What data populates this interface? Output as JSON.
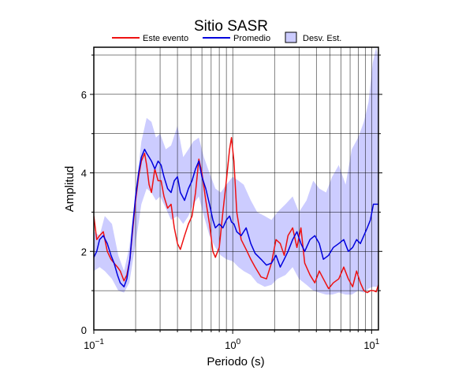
{
  "chart_data": {
    "type": "line",
    "title": "Sitio SASR",
    "xlabel": "Periodo (s)",
    "ylabel": "Amplitud",
    "x_scale": "log",
    "xlim": [
      0.1,
      11.2
    ],
    "ylim": [
      0,
      7.2
    ],
    "grid": true,
    "legend_position": "top",
    "x_ticks": [
      {
        "value": 0.1,
        "base": "10",
        "exp": "−1"
      },
      {
        "value": 1,
        "base": "10",
        "exp": "0"
      },
      {
        "value": 10,
        "base": "10",
        "exp": "1"
      }
    ],
    "y_ticks": [
      0,
      2,
      4,
      6
    ],
    "series": [
      {
        "name": "Este evento",
        "color": "#ee1111",
        "x": [
          0.1,
          0.105,
          0.11,
          0.117,
          0.125,
          0.133,
          0.14,
          0.148,
          0.155,
          0.165,
          0.173,
          0.182,
          0.19,
          0.2,
          0.21,
          0.22,
          0.232,
          0.24,
          0.25,
          0.26,
          0.275,
          0.29,
          0.305,
          0.32,
          0.34,
          0.36,
          0.38,
          0.4,
          0.42,
          0.45,
          0.48,
          0.51,
          0.54,
          0.57,
          0.6,
          0.64,
          0.68,
          0.72,
          0.75,
          0.8,
          0.85,
          0.9,
          0.95,
          0.98,
          1.02,
          1.07,
          1.15,
          1.25,
          1.35,
          1.45,
          1.6,
          1.75,
          1.9,
          2.05,
          2.2,
          2.35,
          2.5,
          2.7,
          2.9,
          3.1,
          3.3,
          3.6,
          3.9,
          4.2,
          4.5,
          4.9,
          5.3,
          5.8,
          6.3,
          6.8,
          7.3,
          7.8,
          8.3,
          8.8,
          9.3,
          9.8,
          10.3,
          10.8,
          11.2
        ],
        "y": [
          2.9,
          2.3,
          2.4,
          2.5,
          2.0,
          1.8,
          1.7,
          1.6,
          1.5,
          1.25,
          1.4,
          1.8,
          2.5,
          3.3,
          3.9,
          4.3,
          4.5,
          4.2,
          3.7,
          3.5,
          4.1,
          3.8,
          3.8,
          3.4,
          3.1,
          3.2,
          2.6,
          2.2,
          2.05,
          2.4,
          2.7,
          2.9,
          3.5,
          4.35,
          4.0,
          3.3,
          2.7,
          2.0,
          1.85,
          2.1,
          3.0,
          3.8,
          4.6,
          4.9,
          4.3,
          3.0,
          2.3,
          2.05,
          1.8,
          1.6,
          1.35,
          1.3,
          1.7,
          2.3,
          2.2,
          1.9,
          2.4,
          2.6,
          2.1,
          2.6,
          1.7,
          1.4,
          1.2,
          1.5,
          1.3,
          1.05,
          1.2,
          1.3,
          1.6,
          1.3,
          1.1,
          1.5,
          1.2,
          1.0,
          0.95,
          1.0,
          1.0,
          0.97,
          1.15
        ]
      },
      {
        "name": "Promedio",
        "color": "#0000dd",
        "x": [
          0.1,
          0.105,
          0.11,
          0.117,
          0.125,
          0.133,
          0.14,
          0.148,
          0.155,
          0.165,
          0.173,
          0.182,
          0.19,
          0.2,
          0.21,
          0.22,
          0.232,
          0.24,
          0.25,
          0.26,
          0.275,
          0.29,
          0.305,
          0.32,
          0.34,
          0.36,
          0.38,
          0.4,
          0.42,
          0.45,
          0.48,
          0.51,
          0.54,
          0.57,
          0.6,
          0.64,
          0.68,
          0.72,
          0.75,
          0.8,
          0.85,
          0.9,
          0.95,
          0.98,
          1.02,
          1.07,
          1.15,
          1.25,
          1.35,
          1.45,
          1.6,
          1.75,
          1.9,
          2.05,
          2.2,
          2.35,
          2.5,
          2.7,
          2.9,
          3.1,
          3.3,
          3.6,
          3.9,
          4.2,
          4.5,
          4.9,
          5.3,
          5.8,
          6.3,
          6.8,
          7.3,
          7.8,
          8.3,
          8.8,
          9.3,
          9.8,
          10.3,
          10.8,
          11.2
        ],
        "y": [
          1.85,
          2.0,
          2.3,
          2.4,
          2.2,
          1.9,
          1.7,
          1.4,
          1.2,
          1.1,
          1.3,
          1.8,
          2.6,
          3.4,
          4.0,
          4.4,
          4.6,
          4.5,
          4.4,
          4.3,
          4.1,
          4.3,
          4.2,
          3.9,
          3.6,
          3.5,
          3.8,
          3.9,
          3.5,
          3.3,
          3.6,
          3.8,
          4.1,
          4.3,
          3.9,
          3.6,
          3.2,
          2.8,
          2.6,
          2.7,
          2.6,
          2.8,
          2.9,
          2.75,
          2.7,
          2.5,
          2.4,
          2.6,
          2.2,
          1.95,
          1.8,
          1.65,
          1.7,
          1.9,
          1.6,
          1.8,
          2.0,
          2.3,
          2.5,
          2.2,
          2.0,
          2.3,
          2.4,
          2.2,
          1.8,
          1.9,
          2.1,
          2.2,
          2.3,
          2.0,
          2.1,
          2.3,
          2.2,
          2.4,
          2.6,
          2.8,
          3.2,
          3.2,
          3.2
        ]
      }
    ],
    "band": {
      "name": "Desv. Est.",
      "color": "#ccccff",
      "x": [
        0.1,
        0.11,
        0.12,
        0.135,
        0.15,
        0.165,
        0.18,
        0.2,
        0.22,
        0.24,
        0.26,
        0.28,
        0.3,
        0.33,
        0.36,
        0.4,
        0.44,
        0.48,
        0.52,
        0.57,
        0.62,
        0.68,
        0.75,
        0.82,
        0.9,
        1.0,
        1.1,
        1.2,
        1.35,
        1.5,
        1.7,
        1.9,
        2.1,
        2.4,
        2.7,
        3.0,
        3.4,
        3.8,
        4.2,
        4.7,
        5.2,
        5.8,
        6.5,
        7.2,
        8.0,
        8.8,
        9.5,
        10.2,
        10.8,
        11.2
      ],
      "lower": [
        1.5,
        1.6,
        1.5,
        1.3,
        1.0,
        0.95,
        1.2,
        2.2,
        3.2,
        3.6,
        3.5,
        3.3,
        3.4,
        3.1,
        2.8,
        2.9,
        2.7,
        2.9,
        3.2,
        3.4,
        2.9,
        2.4,
        2.1,
        1.9,
        1.8,
        1.75,
        1.6,
        1.5,
        1.4,
        1.2,
        1.1,
        1.15,
        1.3,
        1.4,
        1.6,
        1.3,
        1.15,
        1.0,
        0.95,
        0.9,
        0.9,
        0.95,
        0.9,
        0.9,
        1.0,
        0.95,
        1.05,
        1.1,
        1.1,
        1.1
      ],
      "upper": [
        2.5,
        2.4,
        2.9,
        2.7,
        1.9,
        1.5,
        2.1,
        3.5,
        4.8,
        5.4,
        5.3,
        4.9,
        5.0,
        4.6,
        4.7,
        5.2,
        4.4,
        4.6,
        4.8,
        4.9,
        4.4,
        4.0,
        3.6,
        3.5,
        3.7,
        3.9,
        3.8,
        3.7,
        3.3,
        3.0,
        2.9,
        2.8,
        3.0,
        3.2,
        3.4,
        3.0,
        3.3,
        3.8,
        3.6,
        3.5,
        3.9,
        4.2,
        3.7,
        4.6,
        4.9,
        5.3,
        5.8,
        6.8,
        7.2,
        6.9
      ]
    }
  }
}
